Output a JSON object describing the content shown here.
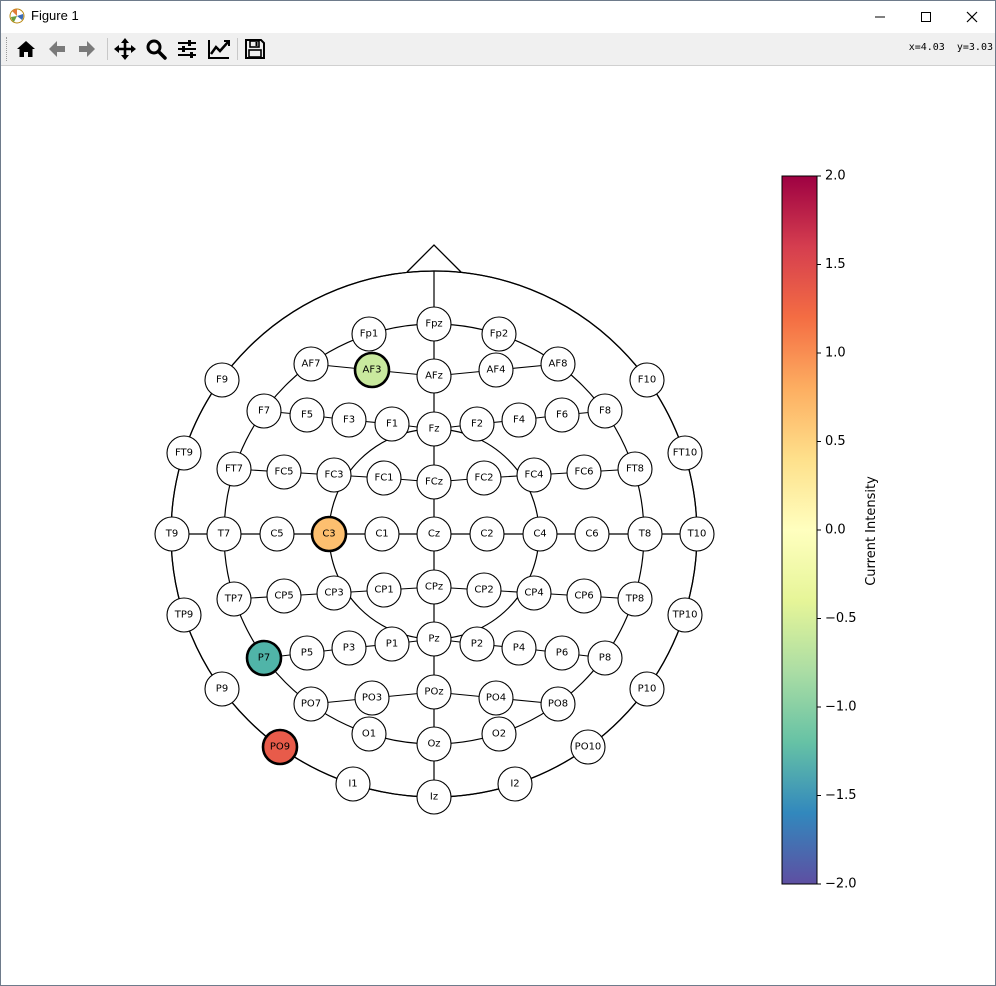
{
  "window": {
    "title": "Figure 1"
  },
  "toolbar": {
    "buttons": [
      {
        "name": "home",
        "icon": "home-icon"
      },
      {
        "name": "back",
        "icon": "arrow-left-icon"
      },
      {
        "name": "forward",
        "icon": "arrow-right-icon"
      },
      {
        "name": "pan",
        "icon": "move-icon"
      },
      {
        "name": "zoom",
        "icon": "magnifier-icon"
      },
      {
        "name": "configure-subplots",
        "icon": "sliders-icon"
      },
      {
        "name": "edit-axis",
        "icon": "line-chart-icon"
      },
      {
        "name": "save",
        "icon": "floppy-disk-icon"
      }
    ],
    "coordinates": "x=4.03  y=3.03"
  },
  "colors": {
    "toolbar_bg": "#f0f0f0",
    "electrode_default": "#ffffff"
  },
  "chart_data": {
    "type": "topomap",
    "colorbar": {
      "label": "Current Intensity",
      "colormap": "Spectral_r",
      "range": [
        -2.0,
        2.0
      ],
      "ticks": [
        "2.0",
        "1.5",
        "1.0",
        "0.5",
        "0.0",
        "−0.5",
        "−1.0",
        "−1.5",
        "−2.0"
      ]
    },
    "highlighted": [
      {
        "name": "AF3",
        "value": -0.25,
        "color": "#c9e99e"
      },
      {
        "name": "C3",
        "value": 0.5,
        "color": "#fdbf6f"
      },
      {
        "name": "P7",
        "value": -1.25,
        "color": "#50b4a8"
      },
      {
        "name": "PO9",
        "value": 1.25,
        "color": "#e85b4a"
      }
    ],
    "electrodes": [
      "Fpz",
      "Fp1",
      "Fp2",
      "AF7",
      "AF3",
      "AFz",
      "AF4",
      "AF8",
      "F9",
      "F10",
      "F7",
      "F5",
      "F3",
      "F1",
      "Fz",
      "F2",
      "F4",
      "F6",
      "F8",
      "FT9",
      "FT10",
      "FT7",
      "FC5",
      "FC3",
      "FC1",
      "FCz",
      "FC2",
      "FC4",
      "FC6",
      "FT8",
      "T9",
      "T7",
      "C5",
      "C3",
      "C1",
      "Cz",
      "C2",
      "C4",
      "C6",
      "T8",
      "T10",
      "TP7",
      "CP5",
      "CP3",
      "CP1",
      "CPz",
      "CP2",
      "CP4",
      "CP6",
      "TP8",
      "TP9",
      "TP10",
      "P7",
      "P5",
      "P3",
      "P1",
      "Pz",
      "P2",
      "P4",
      "P6",
      "P8",
      "P9",
      "P10",
      "PO7",
      "PO3",
      "POz",
      "PO4",
      "PO8",
      "PO9",
      "PO10",
      "O1",
      "Oz",
      "O2",
      "I1",
      "Iz",
      "I2"
    ]
  }
}
